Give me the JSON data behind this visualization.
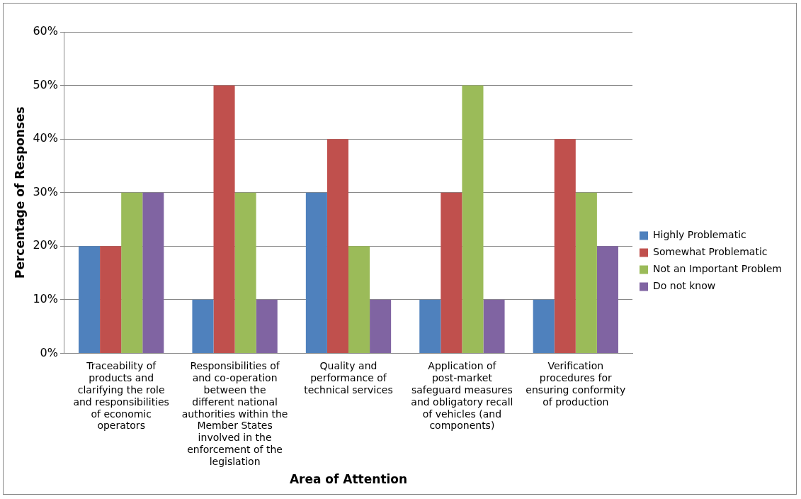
{
  "chart_data": {
    "type": "bar",
    "xlabel": "Area of Attention",
    "ylabel": "Percentage of Responses",
    "categories": [
      "Traceability of products and clarifying the role and responsibilities of economic operators",
      "Responsibilities of and co-operation between the different national authorities within the Member States involved in the enforcement of the legislation",
      "Quality and performance of technical services",
      "Application of post-market safeguard measures and obligatory recall of vehicles (and components)",
      "Verification procedures for ensuring conformity of production"
    ],
    "series": [
      {
        "name": "Highly Problematic",
        "color": "#4f81bd",
        "values": [
          20,
          10,
          30,
          10,
          10
        ]
      },
      {
        "name": "Somewhat Problematic",
        "color": "#c0504d",
        "values": [
          20,
          50,
          40,
          30,
          40
        ]
      },
      {
        "name": "Not an Important Problem",
        "color": "#9bbb59",
        "values": [
          30,
          30,
          20,
          50,
          30
        ]
      },
      {
        "name": "Do not know",
        "color": "#8064a2",
        "values": [
          30,
          10,
          10,
          10,
          20
        ]
      }
    ],
    "ylim": [
      0,
      60
    ],
    "yticks": [
      {
        "value": 0,
        "label": "0%"
      },
      {
        "value": 10,
        "label": "10%"
      },
      {
        "value": 20,
        "label": "20%"
      },
      {
        "value": 30,
        "label": "30%"
      },
      {
        "value": 40,
        "label": "40%"
      },
      {
        "value": 50,
        "label": "50%"
      },
      {
        "value": 60,
        "label": "60%"
      }
    ],
    "grid": "y",
    "legend": "right"
  }
}
